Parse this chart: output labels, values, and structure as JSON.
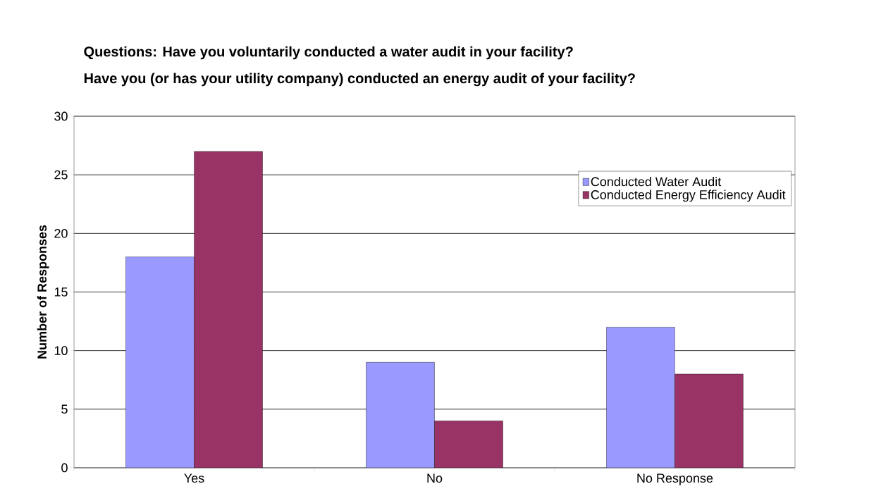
{
  "chart_data": {
    "type": "bar",
    "title": "Questions: Have you voluntarily conducted a water audit in your facility?",
    "subtitle": "Have you (or has your utility company) conducted an energy audit of your facility?",
    "ylabel": "Number of Responses",
    "categories": [
      "Yes",
      "No",
      "No Response"
    ],
    "series": [
      {
        "name": "Conducted Water Audit",
        "color": "#9999ff",
        "values": [
          18,
          9,
          12
        ]
      },
      {
        "name": "Conducted Energy Efficiency Audit",
        "color": "#993366",
        "values": [
          27,
          4,
          8
        ]
      }
    ],
    "ylim": [
      0,
      30
    ],
    "yticks": [
      0,
      5,
      10,
      15,
      20,
      25,
      30
    ],
    "grid": "y",
    "legend": "top right"
  }
}
